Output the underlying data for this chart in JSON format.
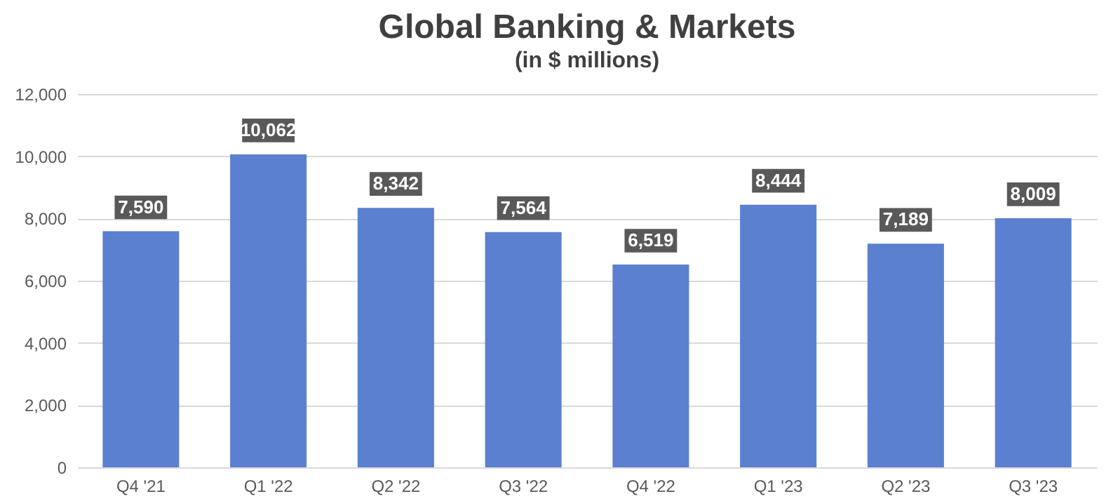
{
  "chart_data": {
    "type": "bar",
    "title": "Global Banking & Markets",
    "subtitle": "(in $ millions)",
    "categories": [
      "Q4 '21",
      "Q1 '22",
      "Q2 '22",
      "Q3 '22",
      "Q4 '22",
      "Q1 '23",
      "Q2 '23",
      "Q3 '23"
    ],
    "values": [
      7590,
      10062,
      8342,
      7564,
      6519,
      8444,
      7189,
      8009
    ],
    "color": "#5b80d0",
    "value_labels": [
      "7,590",
      "10,062",
      "8,342",
      "7,564",
      "6,519",
      "8,444",
      "7,189",
      "8,009"
    ],
    "ylim": [
      0,
      12000
    ],
    "yticks": [
      0,
      {
        "value": 2000,
        "label": "2,000"
      },
      {
        "value": 4000,
        "label": "4,000"
      },
      {
        "value": 6000,
        "label": "6,000"
      },
      {
        "value": 8000,
        "label": "8,000"
      },
      {
        "value": 10000,
        "label": "10,000"
      },
      {
        "value": 12000,
        "label": "12,000"
      }
    ],
    "grid": "y"
  }
}
